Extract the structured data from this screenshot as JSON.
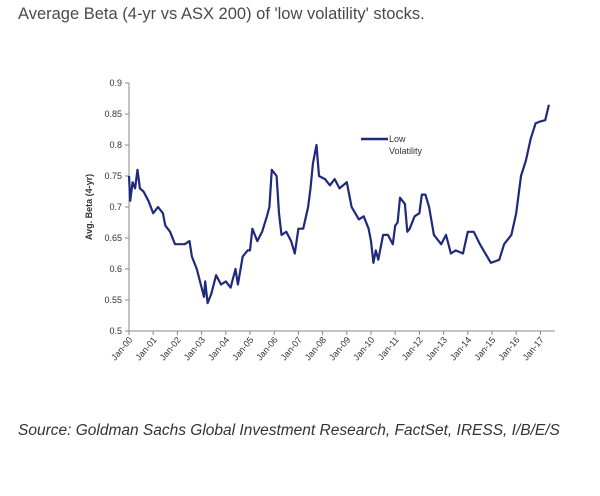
{
  "chart_data": {
    "type": "line",
    "title": "Average Beta (4-yr vs ASX 200) of 'low volatility' stocks.",
    "xlabel": "",
    "ylabel": "Avg. Beta (4-yr)",
    "ylim": [
      0.5,
      0.9
    ],
    "yticks": [
      "0.5",
      "0.55",
      "0.6",
      "0.65",
      "0.7",
      "0.75",
      "0.8",
      "0.85",
      "0.9"
    ],
    "xticks": [
      "Jan-00",
      "Jan-01",
      "Jan-02",
      "Jan-03",
      "Jan-04",
      "Jan-05",
      "Jan-06",
      "Jan-07",
      "Jan-08",
      "Jan-09",
      "Jan-10",
      "Jan-11",
      "Jan-12",
      "Jan-13",
      "Jan-14",
      "Jan-15",
      "Jan-16",
      "Jan-17"
    ],
    "grid": false,
    "legend_position": "top-center",
    "series": [
      {
        "name": "Low Volatility",
        "color": "#1f2a7a",
        "x_years_since_2000": [
          0.0,
          0.05,
          0.15,
          0.25,
          0.35,
          0.45,
          0.6,
          0.8,
          1.0,
          1.2,
          1.4,
          1.5,
          1.7,
          1.9,
          2.0,
          2.3,
          2.5,
          2.6,
          2.8,
          3.0,
          3.1,
          3.15,
          3.25,
          3.4,
          3.6,
          3.8,
          4.0,
          4.2,
          4.4,
          4.5,
          4.7,
          4.9,
          5.0,
          5.1,
          5.3,
          5.5,
          5.7,
          5.8,
          5.9,
          6.1,
          6.2,
          6.3,
          6.5,
          6.7,
          6.85,
          7.0,
          7.2,
          7.4,
          7.5,
          7.6,
          7.75,
          7.85,
          8.1,
          8.3,
          8.5,
          8.7,
          9.0,
          9.2,
          9.5,
          9.7,
          9.9,
          10.0,
          10.1,
          10.2,
          10.3,
          10.5,
          10.7,
          10.9,
          11.0,
          11.1,
          11.2,
          11.4,
          11.5,
          11.6,
          11.8,
          12.0,
          12.1,
          12.25,
          12.4,
          12.6,
          12.9,
          13.1,
          13.3,
          13.5,
          13.8,
          14.0,
          14.25,
          14.5,
          14.8,
          14.95,
          15.1,
          15.3,
          15.5,
          15.8,
          16.0,
          16.2,
          16.4,
          16.6,
          16.8,
          17.0,
          17.2,
          17.35
        ],
        "values": [
          0.75,
          0.71,
          0.74,
          0.73,
          0.76,
          0.73,
          0.725,
          0.71,
          0.69,
          0.7,
          0.69,
          0.67,
          0.66,
          0.64,
          0.64,
          0.64,
          0.645,
          0.62,
          0.6,
          0.57,
          0.555,
          0.58,
          0.545,
          0.56,
          0.59,
          0.575,
          0.58,
          0.57,
          0.6,
          0.575,
          0.62,
          0.63,
          0.63,
          0.665,
          0.645,
          0.66,
          0.685,
          0.7,
          0.76,
          0.75,
          0.69,
          0.655,
          0.66,
          0.645,
          0.625,
          0.665,
          0.665,
          0.7,
          0.73,
          0.77,
          0.8,
          0.75,
          0.745,
          0.735,
          0.745,
          0.73,
          0.74,
          0.7,
          0.68,
          0.685,
          0.665,
          0.645,
          0.61,
          0.63,
          0.615,
          0.655,
          0.655,
          0.64,
          0.67,
          0.675,
          0.715,
          0.705,
          0.66,
          0.665,
          0.685,
          0.69,
          0.72,
          0.72,
          0.7,
          0.655,
          0.64,
          0.655,
          0.625,
          0.63,
          0.625,
          0.66,
          0.66,
          0.64,
          0.62,
          0.61,
          0.612,
          0.615,
          0.64,
          0.655,
          0.69,
          0.75,
          0.775,
          0.81,
          0.835,
          0.838,
          0.84,
          0.865
        ]
      }
    ]
  },
  "legend": {
    "line1": "Low",
    "line2": "Volatility"
  },
  "source": "Source: Goldman Sachs Global Investment Research, FactSet, IRESS, I/B/E/S"
}
